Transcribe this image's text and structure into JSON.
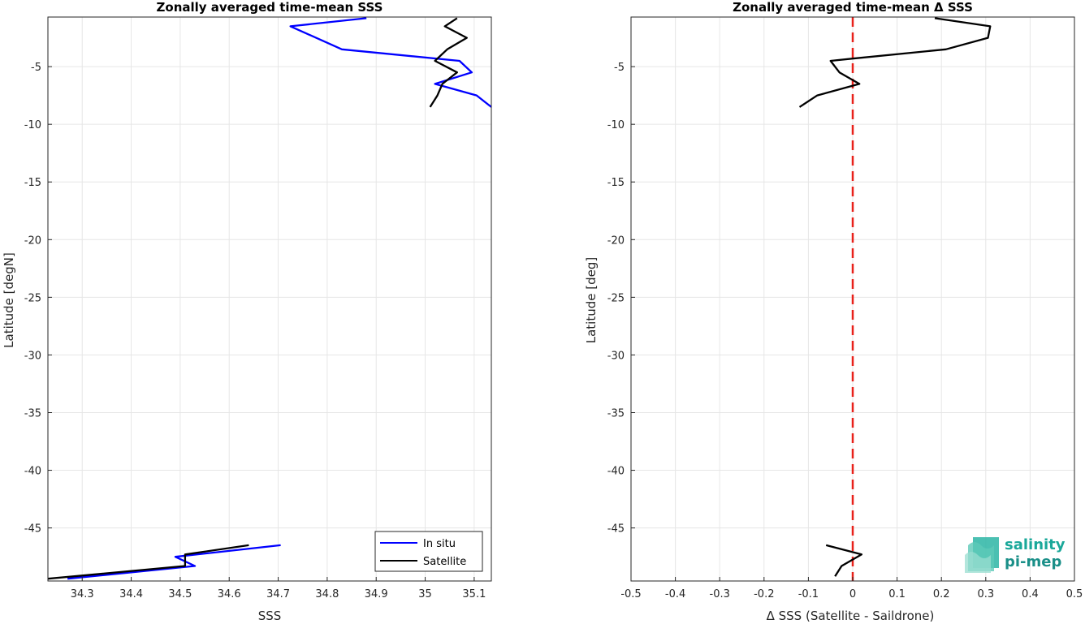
{
  "chart_data": [
    {
      "type": "line",
      "title": "Zonally averaged time-mean SSS",
      "xlabel": "SSS",
      "ylabel": "Latitude [degN]",
      "xlim": [
        34.23,
        35.135
      ],
      "ylim": [
        -49.6,
        -0.7
      ],
      "xticks": [
        "34.3",
        "34.4",
        "34.5",
        "34.6",
        "34.7",
        "34.8",
        "34.9",
        "35",
        "35.1"
      ],
      "yticks": [
        "-5",
        "-10",
        "-15",
        "-20",
        "-25",
        "-30",
        "-35",
        "-40",
        "-45"
      ],
      "grid": true,
      "legend": "bottom-right",
      "series": [
        {
          "name": "In situ",
          "color": "#0000ff",
          "segments": [
            [
              [
                34.88,
                -0.8
              ],
              [
                34.725,
                -1.5
              ],
              [
                34.83,
                -3.5
              ],
              [
                35.07,
                -4.5
              ],
              [
                35.095,
                -5.5
              ],
              [
                35.02,
                -6.5
              ],
              [
                35.105,
                -7.5
              ],
              [
                35.135,
                -8.5
              ]
            ],
            [
              [
                34.705,
                -46.5
              ],
              [
                34.49,
                -47.5
              ],
              [
                34.53,
                -48.3
              ],
              [
                34.27,
                -49.4
              ]
            ]
          ]
        },
        {
          "name": "Satellite",
          "color": "#000000",
          "segments": [
            [
              [
                35.065,
                -0.8
              ],
              [
                35.04,
                -1.5
              ],
              [
                35.085,
                -2.5
              ],
              [
                35.045,
                -3.5
              ],
              [
                35.02,
                -4.5
              ],
              [
                35.065,
                -5.5
              ],
              [
                35.035,
                -6.5
              ],
              [
                35.025,
                -7.5
              ],
              [
                35.01,
                -8.5
              ]
            ],
            [
              [
                34.64,
                -46.5
              ],
              [
                34.51,
                -47.3
              ],
              [
                34.51,
                -48.3
              ],
              [
                34.23,
                -49.4
              ]
            ]
          ]
        }
      ]
    },
    {
      "type": "line",
      "title": "Zonally averaged time-mean Δ SSS",
      "xlabel": "Δ SSS (Satellite - Saildrone)",
      "ylabel": "Latitude [deg]",
      "xlim": [
        -0.5,
        0.5
      ],
      "ylim": [
        -49.6,
        -0.7
      ],
      "xticks": [
        "-0.5",
        "-0.4",
        "-0.3",
        "-0.2",
        "-0.1",
        "0",
        "0.1",
        "0.2",
        "0.3",
        "0.4",
        "0.5"
      ],
      "yticks": [
        "-5",
        "-10",
        "-15",
        "-20",
        "-25",
        "-30",
        "-35",
        "-40",
        "-45"
      ],
      "grid": true,
      "reference_line": {
        "x": 0,
        "color": "#e8211a",
        "style": "dashed"
      },
      "series": [
        {
          "color": "#000000",
          "segments": [
            [
              [
                0.185,
                -0.8
              ],
              [
                0.31,
                -1.5
              ],
              [
                0.305,
                -2.5
              ],
              [
                0.21,
                -3.5
              ],
              [
                0.0,
                -4.3
              ],
              [
                -0.05,
                -4.5
              ],
              [
                -0.03,
                -5.5
              ],
              [
                0.015,
                -6.5
              ],
              [
                -0.08,
                -7.5
              ],
              [
                -0.12,
                -8.5
              ]
            ],
            [
              [
                -0.06,
                -46.5
              ],
              [
                0.02,
                -47.3
              ],
              [
                -0.025,
                -48.3
              ],
              [
                -0.04,
                -49.2
              ]
            ]
          ]
        }
      ]
    }
  ],
  "logo": {
    "line1": "salinity",
    "line2": "pi-mep"
  }
}
